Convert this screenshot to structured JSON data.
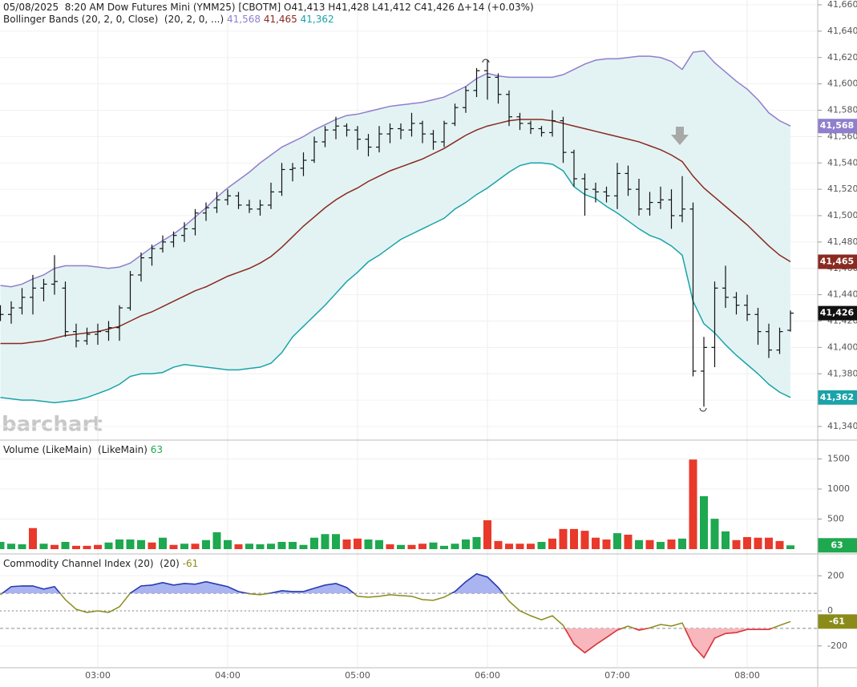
{
  "chart_data": [
    {
      "type": "ohlc",
      "title": "05/08/2025  8:20 AM Dow Futures Mini (YMM25) [CBOTM] O41,413 H41,428 L41,412 C41,426 Δ+14 (+0.03%)",
      "indicator": "Bollinger Bands (20, 2, 0, Close)  (20, 2, 0, ...)",
      "watermark": "barchart",
      "color": "#111111",
      "last_label": "41,426",
      "band_fill": "#e3f3f3",
      "ylim": [
        41340,
        41660
      ],
      "yticks": [
        {
          "value": 41340,
          "label": "41,340"
        },
        {
          "value": 41360,
          "label": "41,360"
        },
        {
          "value": 41380,
          "label": "41,380"
        },
        {
          "value": 41400,
          "label": "41,400"
        },
        {
          "value": 41420,
          "label": "41,420"
        },
        {
          "value": 41440,
          "label": "41,440"
        },
        {
          "value": 41460,
          "label": "41,460"
        },
        {
          "value": 41480,
          "label": "41,480"
        },
        {
          "value": 41500,
          "label": "41,500"
        },
        {
          "value": 41520,
          "label": "41,520"
        },
        {
          "value": 41540,
          "label": "41,540"
        },
        {
          "value": 41560,
          "label": "41,560"
        },
        {
          "value": 41580,
          "label": "41,580"
        },
        {
          "value": 41600,
          "label": "41,600"
        },
        {
          "value": 41620,
          "label": "41,620"
        },
        {
          "value": 41640,
          "label": "41,640"
        },
        {
          "value": 41660,
          "label": "41,660"
        }
      ],
      "grid": true,
      "open": [
        41428,
        41425,
        41430,
        41438,
        41445,
        41448,
        41445,
        41412,
        41405,
        41410,
        41412,
        41415,
        41430,
        41455,
        41468,
        41475,
        41480,
        41485,
        41490,
        41502,
        41506,
        41512,
        41515,
        41508,
        41505,
        41508,
        41518,
        41535,
        41536,
        41542,
        41556,
        41565,
        41568,
        41565,
        41558,
        41552,
        41562,
        41566,
        41565,
        41570,
        41562,
        41556,
        41570,
        41582,
        41595,
        41610,
        41605,
        41592,
        41575,
        41570,
        41566,
        41563,
        41572,
        41548,
        41528,
        41520,
        41518,
        41515,
        41532,
        41520,
        41505,
        41510,
        41512,
        41500,
        41505,
        41382,
        41400,
        41445,
        41438,
        41432,
        41425,
        41412,
        41398,
        41413
      ],
      "high": [
        41432,
        41435,
        41445,
        41455,
        41452,
        41470,
        41450,
        41418,
        41415,
        41418,
        41420,
        41432,
        41458,
        41472,
        41478,
        41485,
        41488,
        41495,
        41505,
        41510,
        41518,
        41520,
        41518,
        41512,
        41512,
        41525,
        41540,
        41540,
        41548,
        41560,
        41568,
        41575,
        41570,
        41568,
        41562,
        41568,
        41570,
        41570,
        41578,
        41572,
        41565,
        41572,
        41585,
        41598,
        41612,
        41618,
        41608,
        41595,
        41578,
        41572,
        41568,
        41580,
        41575,
        41550,
        41532,
        41525,
        41522,
        41540,
        41538,
        41528,
        41518,
        41522,
        41520,
        41530,
        41510,
        41408,
        41450,
        41462,
        41442,
        41440,
        41430,
        41418,
        41415,
        41428
      ],
      "low": [
        41420,
        41418,
        41425,
        41425,
        41435,
        41440,
        41408,
        41400,
        41402,
        41402,
        41405,
        41405,
        41428,
        41450,
        41462,
        41472,
        41476,
        41480,
        41485,
        41496,
        41502,
        41508,
        41505,
        41502,
        41500,
        41505,
        41515,
        41526,
        41530,
        41540,
        41552,
        41558,
        41560,
        41550,
        41545,
        41548,
        41555,
        41558,
        41560,
        41555,
        41550,
        41552,
        41568,
        41578,
        41590,
        41588,
        41585,
        41568,
        41565,
        41562,
        41560,
        41560,
        41540,
        41522,
        41500,
        41510,
        41510,
        41505,
        41515,
        41500,
        41500,
        41505,
        41490,
        41495,
        41378,
        41355,
        41385,
        41430,
        41425,
        41420,
        41402,
        41392,
        41395,
        41412
      ],
      "close": [
        41425,
        41430,
        41438,
        41445,
        41448,
        41450,
        41412,
        41405,
        41410,
        41412,
        41415,
        41430,
        41455,
        41468,
        41475,
        41480,
        41485,
        41490,
        41502,
        41506,
        41512,
        41515,
        41508,
        41505,
        41508,
        41518,
        41535,
        41536,
        41542,
        41556,
        41565,
        41568,
        41565,
        41558,
        41552,
        41562,
        41566,
        41565,
        41570,
        41562,
        41556,
        41570,
        41582,
        41595,
        41610,
        41605,
        41592,
        41575,
        41570,
        41566,
        41563,
        41572,
        41548,
        41528,
        41520,
        41518,
        41515,
        41532,
        41520,
        41505,
        41510,
        41512,
        41500,
        41505,
        41382,
        41400,
        41445,
        41438,
        41432,
        41425,
        41412,
        41398,
        41412,
        41426
      ],
      "series": [
        {
          "color": "#8f7fcc",
          "last_label": "41,568",
          "values": [
            41447,
            41446,
            41448,
            41452,
            41455,
            41460,
            41462,
            41462,
            41462,
            41461,
            41460,
            41461,
            41464,
            41470,
            41476,
            41481,
            41486,
            41492,
            41499,
            41506,
            41514,
            41521,
            41527,
            41533,
            41540,
            41546,
            41552,
            41556,
            41560,
            41565,
            41569,
            41573,
            41576,
            41577,
            41579,
            41581,
            41583,
            41584,
            41585,
            41586,
            41588,
            41590,
            41594,
            41598,
            41604,
            41608,
            41606,
            41605,
            41605,
            41605,
            41605,
            41605,
            41607,
            41611,
            41615,
            41618,
            41619,
            41619,
            41620,
            41621,
            41621,
            41620,
            41617,
            41611,
            41624,
            41625,
            41616,
            41609,
            41602,
            41596,
            41588,
            41578,
            41572,
            41568
          ]
        },
        {
          "color": "#8a2a20",
          "last_label": "41,465",
          "values": [
            41403,
            41403,
            41403,
            41404,
            41405,
            41407,
            41409,
            41410,
            41411,
            41412,
            41414,
            41416,
            41420,
            41424,
            41427,
            41431,
            41435,
            41439,
            41443,
            41446,
            41450,
            41454,
            41457,
            41460,
            41464,
            41469,
            41476,
            41484,
            41492,
            41499,
            41506,
            41512,
            41517,
            41521,
            41526,
            41530,
            41534,
            41537,
            41540,
            41543,
            41547,
            41551,
            41556,
            41561,
            41565,
            41568,
            41570,
            41572,
            41573,
            41573,
            41573,
            41572,
            41570,
            41568,
            41566,
            41564,
            41562,
            41560,
            41558,
            41556,
            41553,
            41550,
            41546,
            41541,
            41530,
            41521,
            41514,
            41507,
            41500,
            41493,
            41485,
            41477,
            41470,
            41465
          ]
        },
        {
          "color": "#1aa3a8",
          "last_label": "41,362",
          "values": [
            41362,
            41361,
            41360,
            41360,
            41359,
            41358,
            41359,
            41360,
            41362,
            41365,
            41368,
            41372,
            41378,
            41380,
            41380,
            41381,
            41385,
            41387,
            41386,
            41385,
            41384,
            41383,
            41383,
            41384,
            41385,
            41388,
            41396,
            41408,
            41416,
            41424,
            41432,
            41441,
            41450,
            41457,
            41465,
            41470,
            41476,
            41482,
            41486,
            41490,
            41494,
            41498,
            41505,
            41510,
            41516,
            41521,
            41527,
            41533,
            41538,
            41540,
            41540,
            41539,
            41534,
            41522,
            41516,
            41513,
            41507,
            41502,
            41496,
            41490,
            41485,
            41482,
            41477,
            41470,
            41435,
            41418,
            41411,
            41402,
            41394,
            41387,
            41380,
            41372,
            41366,
            41362
          ]
        }
      ]
    },
    {
      "type": "bar",
      "indicator": "Volume (LikeMain)  (LikeMain)",
      "ylim": [
        0,
        1800
      ],
      "yticks": [
        500,
        1000,
        1500
      ],
      "values": [
        120,
        90,
        80,
        350,
        90,
        70,
        120,
        55,
        55,
        70,
        110,
        160,
        160,
        150,
        110,
        190,
        70,
        90,
        90,
        150,
        280,
        150,
        80,
        90,
        80,
        90,
        120,
        120,
        70,
        190,
        250,
        250,
        160,
        175,
        160,
        150,
        80,
        70,
        70,
        90,
        110,
        55,
        90,
        160,
        200,
        480,
        135,
        90,
        90,
        90,
        120,
        175,
        335,
        335,
        305,
        190,
        160,
        265,
        240,
        150,
        150,
        120,
        160,
        175,
        1490,
        880,
        505,
        295,
        150,
        200,
        190,
        190,
        135,
        63
      ],
      "colors": [
        "#1ea84f",
        "#1ea84f",
        "#1ea84f",
        "#e8392b",
        "#1ea84f",
        "#e8392b",
        "#1ea84f",
        "#e8392b",
        "#e8392b",
        "#e8392b",
        "#1ea84f",
        "#1ea84f",
        "#1ea84f",
        "#1ea84f",
        "#e8392b",
        "#1ea84f",
        "#e8392b",
        "#1ea84f",
        "#e8392b",
        "#1ea84f",
        "#1ea84f",
        "#1ea84f",
        "#e8392b",
        "#1ea84f",
        "#1ea84f",
        "#1ea84f",
        "#1ea84f",
        "#1ea84f",
        "#1ea84f",
        "#1ea84f",
        "#1ea84f",
        "#1ea84f",
        "#e8392b",
        "#e8392b",
        "#1ea84f",
        "#1ea84f",
        "#e8392b",
        "#1ea84f",
        "#e8392b",
        "#e8392b",
        "#1ea84f",
        "#1ea84f",
        "#1ea84f",
        "#1ea84f",
        "#1ea84f",
        "#e8392b",
        "#e8392b",
        "#e8392b",
        "#e8392b",
        "#e8392b",
        "#1ea84f",
        "#e8392b",
        "#e8392b",
        "#e8392b",
        "#e8392b",
        "#e8392b",
        "#e8392b",
        "#1ea84f",
        "#e8392b",
        "#1ea84f",
        "#e8392b",
        "#1ea84f",
        "#e8392b",
        "#1ea84f",
        "#e8392b",
        "#1ea84f",
        "#1ea84f",
        "#1ea84f",
        "#e8392b",
        "#e8392b",
        "#e8392b",
        "#e8392b",
        "#e8392b",
        "#1ea84f"
      ]
    },
    {
      "type": "line",
      "indicator": "Commodity Channel Index (20)  (20)",
      "color": "#8b8b1a",
      "above_color": "#2338c4",
      "below_color": "#e03040",
      "above_fill": "#a9b4f0",
      "below_fill": "#f8b7bd",
      "levels": [
        100,
        0,
        -100
      ],
      "ylim": [
        -320,
        320
      ],
      "yticks": [
        200,
        0,
        -200
      ],
      "categories": [
        null,
        null,
        null,
        null,
        null,
        null,
        null,
        null,
        null,
        "03:00",
        null,
        null,
        null,
        null,
        null,
        null,
        null,
        null,
        null,
        null,
        null,
        "04:00",
        null,
        null,
        null,
        null,
        null,
        null,
        null,
        null,
        null,
        null,
        null,
        "05:00",
        null,
        null,
        null,
        null,
        null,
        null,
        null,
        null,
        null,
        null,
        null,
        "06:00",
        null,
        null,
        null,
        null,
        null,
        null,
        null,
        null,
        null,
        null,
        null,
        "07:00",
        null,
        null,
        null,
        null,
        null,
        null,
        null,
        null,
        null,
        null,
        null,
        "08:00",
        null,
        null,
        null,
        null
      ],
      "values": [
        92,
        138,
        142,
        142,
        124,
        138,
        64,
        9,
        -9,
        0,
        -9,
        23,
        101,
        142,
        147,
        161,
        147,
        156,
        152,
        166,
        152,
        138,
        110,
        97,
        92,
        101,
        115,
        110,
        110,
        129,
        147,
        156,
        133,
        83,
        78,
        83,
        92,
        87,
        83,
        64,
        60,
        78,
        110,
        166,
        211,
        193,
        133,
        55,
        0,
        -28,
        -51,
        -28,
        -83,
        -189,
        -239,
        -193,
        -152,
        -110,
        -87,
        -110,
        -97,
        -78,
        -87,
        -69,
        -198,
        -267,
        -156,
        -129,
        -124,
        -106,
        -106,
        -106,
        -83,
        -61
      ]
    }
  ]
}
